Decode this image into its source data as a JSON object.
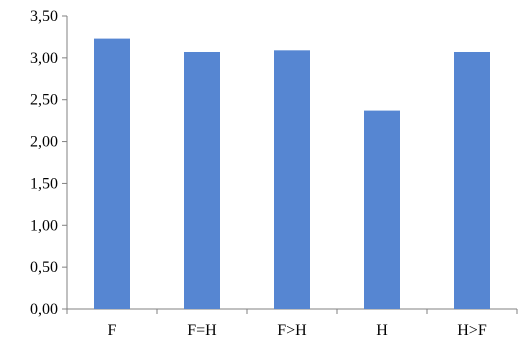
{
  "chart_data": {
    "type": "bar",
    "categories": [
      "F",
      "F=H",
      "F>H",
      "H",
      "H>F"
    ],
    "values": [
      3.23,
      3.07,
      3.09,
      2.37,
      3.07
    ],
    "title": "",
    "xlabel": "",
    "ylabel": "",
    "ylim": [
      0,
      3.5
    ],
    "yticks": [
      "0,00",
      "0,50",
      "1,00",
      "1,50",
      "2,00",
      "2,50",
      "3,00",
      "3,50"
    ],
    "grid": false,
    "legend": "none",
    "bar_color": "#5686d2"
  }
}
